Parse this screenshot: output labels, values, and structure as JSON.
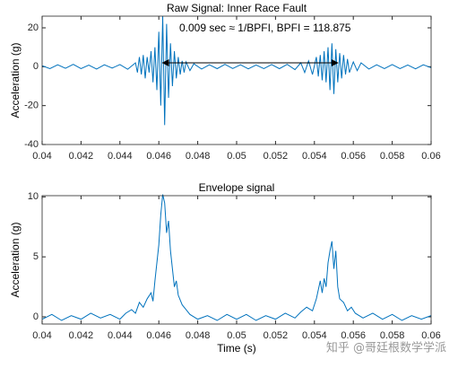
{
  "chart_data": [
    {
      "type": "line",
      "title": "Raw Signal: Inner Race Fault",
      "ylabel": "Acceleration (g)",
      "color": "#0072bd",
      "grid": false,
      "xlim": [
        0.04,
        0.06
      ],
      "xticks": [
        0.04,
        0.042,
        0.044,
        0.046,
        0.048,
        0.05,
        0.052,
        0.054,
        0.056,
        0.058,
        0.06
      ],
      "ylim": [
        -40,
        26
      ],
      "yticks": [
        -40,
        -20,
        0,
        20
      ],
      "annotation": {
        "text": "0.009 sec ≈ 1/BPFI, BPFI = 118.875",
        "x": [
          0.0462,
          0.0552
        ],
        "y": 2
      },
      "x": [
        0.04,
        0.0404,
        0.0408,
        0.0412,
        0.0416,
        0.042,
        0.0424,
        0.0428,
        0.0432,
        0.0436,
        0.044,
        0.0444,
        0.0448,
        0.0449,
        0.045,
        0.0451,
        0.0452,
        0.0453,
        0.0454,
        0.0455,
        0.0456,
        0.0457,
        0.0458,
        0.0459,
        0.046,
        0.0461,
        0.0462,
        0.0463,
        0.0464,
        0.0465,
        0.0466,
        0.0467,
        0.0468,
        0.0469,
        0.047,
        0.0471,
        0.0472,
        0.0473,
        0.0474,
        0.0476,
        0.0478,
        0.0482,
        0.0486,
        0.049,
        0.0494,
        0.0498,
        0.0502,
        0.0506,
        0.051,
        0.0514,
        0.0518,
        0.0522,
        0.0526,
        0.053,
        0.0533,
        0.0535,
        0.0537,
        0.0539,
        0.0541,
        0.0542,
        0.0543,
        0.0544,
        0.0545,
        0.0546,
        0.0547,
        0.0548,
        0.0549,
        0.055,
        0.0551,
        0.0552,
        0.0553,
        0.0554,
        0.0555,
        0.0556,
        0.0557,
        0.0558,
        0.056,
        0.0562,
        0.0564,
        0.0568,
        0.0572,
        0.0576,
        0.058,
        0.0584,
        0.0588,
        0.0592,
        0.0596,
        0.06
      ],
      "values": [
        0.5,
        -1,
        1,
        -0.8,
        1.2,
        -1,
        0.8,
        -1.2,
        1,
        -0.7,
        1.1,
        -1.3,
        2,
        -3,
        5,
        -4,
        6,
        -6,
        5,
        -3,
        8,
        -8,
        10,
        -12,
        18,
        -20,
        26,
        -30,
        22,
        -16,
        12,
        -10,
        8,
        -6,
        5,
        -4,
        3,
        -3,
        2.5,
        -2,
        1.5,
        -1.2,
        1,
        -1,
        1.2,
        -0.9,
        1,
        -1.1,
        0.9,
        -1,
        1.1,
        -1,
        1.2,
        -1.5,
        2,
        -3,
        3,
        -4,
        5,
        -5,
        6,
        -7,
        8,
        -8,
        10,
        -12,
        12,
        -14,
        9,
        -8,
        7,
        -6,
        6,
        -4,
        4,
        -3,
        2.5,
        -2,
        2,
        -1.2,
        1,
        -1,
        1.1,
        -1,
        0.9,
        -1.1,
        1,
        -0.5
      ]
    },
    {
      "type": "line",
      "title": "Envelope signal",
      "ylabel": "Acceleration (g)",
      "xlabel": "Time (s)",
      "color": "#0072bd",
      "grid": false,
      "xlim": [
        0.04,
        0.06
      ],
      "xticks": [
        0.04,
        0.042,
        0.044,
        0.046,
        0.048,
        0.05,
        0.052,
        0.054,
        0.056,
        0.058,
        0.06
      ],
      "ylim": [
        -0.6,
        10.1
      ],
      "yticks": [
        0,
        5,
        10
      ],
      "x": [
        0.04,
        0.0405,
        0.041,
        0.0415,
        0.042,
        0.0425,
        0.043,
        0.0435,
        0.044,
        0.0443,
        0.0446,
        0.0448,
        0.045,
        0.0452,
        0.0454,
        0.0456,
        0.0457,
        0.0458,
        0.0459,
        0.046,
        0.0461,
        0.0462,
        0.0463,
        0.0464,
        0.0465,
        0.0466,
        0.0467,
        0.0468,
        0.0469,
        0.047,
        0.0472,
        0.0474,
        0.0476,
        0.048,
        0.0485,
        0.049,
        0.0495,
        0.05,
        0.0505,
        0.051,
        0.0515,
        0.052,
        0.0525,
        0.053,
        0.0533,
        0.0536,
        0.0539,
        0.0541,
        0.0543,
        0.0544,
        0.0545,
        0.0546,
        0.0547,
        0.0548,
        0.0549,
        0.055,
        0.0551,
        0.0552,
        0.0553,
        0.0555,
        0.0557,
        0.0559,
        0.0561,
        0.0565,
        0.057,
        0.0575,
        0.058,
        0.0585,
        0.059,
        0.0595,
        0.06
      ],
      "values": [
        -0.2,
        0.2,
        -0.3,
        0.1,
        -0.2,
        0.3,
        -0.1,
        0.2,
        -0.2,
        0.3,
        0.6,
        0.3,
        1.2,
        0.8,
        1.5,
        2,
        1.3,
        3,
        4.5,
        6,
        8.5,
        10.2,
        9.5,
        7,
        8,
        5.5,
        4,
        2.5,
        3,
        1.8,
        1,
        0.6,
        0.2,
        -0.2,
        0.1,
        -0.3,
        0.2,
        -0.2,
        0.2,
        -0.3,
        0.1,
        -0.2,
        0.3,
        -0.1,
        0.4,
        0.8,
        0.5,
        1.5,
        3,
        2,
        3.2,
        2.5,
        4.5,
        5.5,
        6.3,
        4,
        5.5,
        2.5,
        1.5,
        1.2,
        0.5,
        0.8,
        0.3,
        -0.1,
        0.3,
        -0.2,
        0.2,
        -0.3,
        0.1,
        -0.2,
        0.1
      ]
    }
  ],
  "watermark": "知乎 @哥廷根数学学派"
}
